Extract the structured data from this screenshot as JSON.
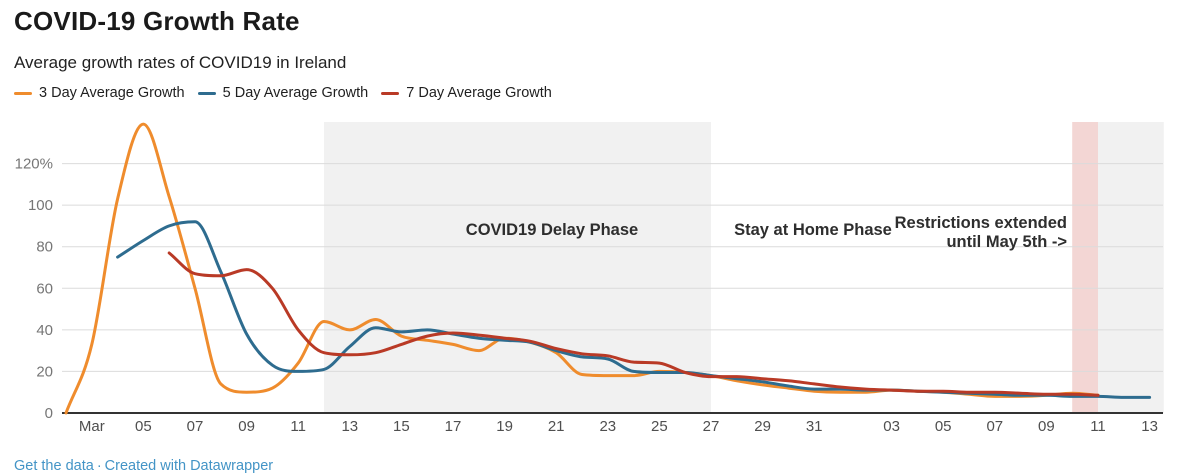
{
  "chart_data": {
    "type": "line",
    "title": "COVID-19 Growth Rate",
    "subtitle": "Average growth rates of COVID19 in Ireland",
    "xlabel": "",
    "ylabel": "",
    "ylim": [
      0,
      140
    ],
    "grid": true,
    "legend_position": "top",
    "x": [
      "Mar 02",
      "Mar 03",
      "Mar 04",
      "Mar 05",
      "Mar 06",
      "Mar 07",
      "Mar 08",
      "Mar 09",
      "Mar 10",
      "Mar 11",
      "Mar 12",
      "Mar 13",
      "Mar 14",
      "Mar 15",
      "Mar 16",
      "Mar 17",
      "Mar 18",
      "Mar 19",
      "Mar 20",
      "Mar 21",
      "Mar 22",
      "Mar 23",
      "Mar 24",
      "Mar 25",
      "Mar 26",
      "Mar 27",
      "Mar 28",
      "Mar 29",
      "Mar 30",
      "Mar 31",
      "Apr 01",
      "Apr 02",
      "Apr 03",
      "Apr 04",
      "Apr 05",
      "Apr 06",
      "Apr 07",
      "Apr 08",
      "Apr 09",
      "Apr 10",
      "Apr 11",
      "Apr 12",
      "Apr 13"
    ],
    "x_ticks": [
      {
        "i": 1,
        "label": "Mar"
      },
      {
        "i": 3,
        "label": "05"
      },
      {
        "i": 5,
        "label": "07"
      },
      {
        "i": 7,
        "label": "09"
      },
      {
        "i": 9,
        "label": "11"
      },
      {
        "i": 11,
        "label": "13"
      },
      {
        "i": 13,
        "label": "15"
      },
      {
        "i": 15,
        "label": "17"
      },
      {
        "i": 17,
        "label": "19"
      },
      {
        "i": 19,
        "label": "21"
      },
      {
        "i": 21,
        "label": "23"
      },
      {
        "i": 23,
        "label": "25"
      },
      {
        "i": 25,
        "label": "27"
      },
      {
        "i": 27,
        "label": "29"
      },
      {
        "i": 29,
        "label": "31"
      },
      {
        "i": 32,
        "label": "03"
      },
      {
        "i": 34,
        "label": "05"
      },
      {
        "i": 36,
        "label": "07"
      },
      {
        "i": 38,
        "label": "09"
      },
      {
        "i": 40,
        "label": "11"
      },
      {
        "i": 42,
        "label": "13"
      }
    ],
    "y_ticks": [
      {
        "v": 0,
        "label": "0"
      },
      {
        "v": 20,
        "label": "20"
      },
      {
        "v": 40,
        "label": "40"
      },
      {
        "v": 60,
        "label": "60"
      },
      {
        "v": 80,
        "label": "80"
      },
      {
        "v": 100,
        "label": "100"
      },
      {
        "v": 120,
        "label": "120%"
      }
    ],
    "series": [
      {
        "name": "3 Day Average Growth",
        "color": "#ef8c2d",
        "values": [
          0,
          33,
          103,
          139,
          104,
          60,
          14,
          10,
          12,
          24,
          44,
          40,
          45,
          37,
          35,
          33,
          30,
          36,
          34,
          29,
          18.5,
          18,
          18,
          20,
          19.5,
          18,
          15.5,
          13.5,
          12,
          10.5,
          10,
          10,
          11,
          10.5,
          10,
          9,
          8,
          8,
          8.5,
          9.5,
          8.5,
          null,
          null
        ]
      },
      {
        "name": "5 Day Average Growth",
        "color": "#2e6c8f",
        "values": [
          null,
          null,
          75,
          83,
          90,
          92,
          68,
          38,
          23,
          20,
          21,
          32,
          41,
          39,
          40,
          38,
          36,
          35,
          34,
          30,
          27,
          26,
          20,
          19.5,
          19.5,
          18,
          16.5,
          15,
          13,
          11.5,
          11.5,
          11,
          11,
          10.5,
          10,
          9.5,
          9,
          8.5,
          8.5,
          8,
          8,
          7.5,
          7.5
        ]
      },
      {
        "name": "7 Day Average Growth",
        "color": "#b93a26",
        "values": [
          null,
          null,
          null,
          null,
          77,
          67,
          66,
          69,
          60,
          40,
          29,
          28,
          29,
          33,
          37,
          38.5,
          37.5,
          36,
          34.5,
          31,
          28.5,
          27.5,
          24.5,
          24,
          19.5,
          17.5,
          17.5,
          16.5,
          15.5,
          14,
          12.5,
          11.5,
          11,
          10.5,
          10.5,
          10,
          10,
          9.5,
          9,
          9,
          8.5,
          null,
          null
        ]
      }
    ],
    "bands": [
      {
        "name": "delay-phase-band",
        "from_i": 10,
        "to_i": 25,
        "color": "#f1f1f1"
      },
      {
        "name": "restrictions-extended-band",
        "from_i": 39,
        "to_i": 40,
        "color": "#f3d6d4"
      },
      {
        "name": "right-phase-band",
        "from_i": 40,
        "to_i": 42.55,
        "color": "#f1f1f1"
      }
    ],
    "annotations": [
      {
        "name": "delay-phase-label",
        "lines": [
          "COVID19 Delay Phase"
        ],
        "x": 552,
        "y": 235,
        "align": "middle"
      },
      {
        "name": "stay-at-home-label",
        "lines": [
          "Stay at Home Phase"
        ],
        "x": 813,
        "y": 235,
        "align": "middle"
      },
      {
        "name": "restrictions-extended-label",
        "lines": [
          "Restrictions extended",
          "until May 5th ->"
        ],
        "x": 1067,
        "y": 228,
        "line_height": 19,
        "align": "end"
      }
    ],
    "axis_colors": {
      "grid": "#dbdbdb",
      "baseline": "#333333",
      "y_label": "#767676",
      "x_label": "#4f4f4f",
      "annotation": "#2e2e2e"
    }
  },
  "footer": {
    "get_data_label": "Get the data",
    "separator": "·",
    "credit_label": "Created with Datawrapper"
  }
}
